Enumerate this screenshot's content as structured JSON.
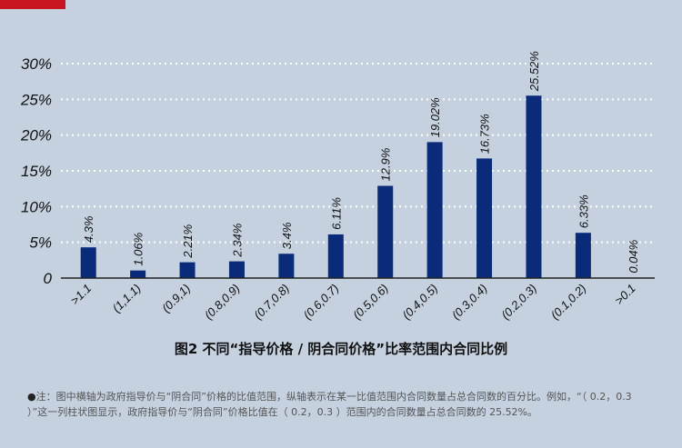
{
  "chart_data": {
    "type": "bar",
    "categories": [
      ">1.1",
      "(1,1.1)",
      "(0.9,1)",
      "(0.8,0.9)",
      "(0.7,0.8)",
      "(0.6,0.7)",
      "(0.5,0.6)",
      "(0.4,0.5)",
      "(0.3,0.4)",
      "(0.2,0.3)",
      "(0.1,0.2)",
      ">0.1"
    ],
    "values": [
      4.3,
      1.06,
      2.21,
      2.34,
      3.4,
      6.11,
      12.9,
      19.02,
      16.73,
      25.52,
      6.33,
      0.04
    ],
    "data_labels": [
      "4.3%",
      "1.06%",
      "2.21%",
      "2.34%",
      "3.4%",
      "6.11%",
      "12.9%",
      "19.02%",
      "16.73%",
      "25.52%",
      "6.33%",
      "0.04%"
    ],
    "y_ticks": [
      0,
      5,
      10,
      15,
      20,
      25,
      30
    ],
    "y_tick_labels": [
      "0",
      "5%",
      "10%",
      "15%",
      "20%",
      "25%",
      "30%"
    ],
    "ylim": [
      0,
      30
    ],
    "grid": true,
    "bar_color": "#0a2a7a",
    "title": "图2 不同“指导价格 / 阴合同价格”比率范围内合同比例"
  },
  "note": {
    "bullet": "●",
    "text": "注：图中横轴为政府指导价与“阴合同”价格的比值范围，纵轴表示在某一比值范围内合同数量占总合同数的百分比。例如，“（ 0.2，0.3 ）”这一列柱状图显示，政府指导价与“阴合同”价格比值在（ 0.2，0.3 ）范围内的合同数量占总合同数的 25.52%。"
  }
}
